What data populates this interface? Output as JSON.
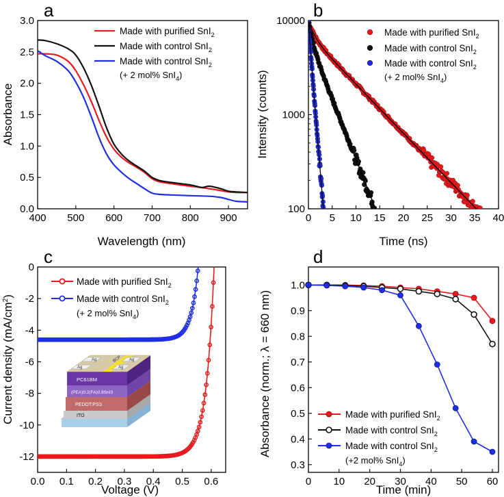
{
  "colors": {
    "red": "#e8191c",
    "black": "#111111",
    "blue": "#1f2ee6"
  },
  "panels": {
    "a": {
      "letter": "a"
    },
    "b": {
      "letter": "b"
    },
    "c": {
      "letter": "c"
    },
    "d": {
      "letter": "d"
    }
  },
  "inset": {
    "layers": [
      "Ag",
      "BCP",
      "PC61BM",
      "(PEA)0.2(FA)0.8SnI3",
      "PEDOT:PSS",
      "ITO"
    ]
  },
  "chart_data": [
    {
      "id": "a",
      "type": "line",
      "xlabel": "Wavelength (nm)",
      "ylabel": "Absorbance",
      "xlim": [
        400,
        950
      ],
      "ylim": [
        0,
        3.0
      ],
      "xticks": [
        400,
        500,
        600,
        700,
        800,
        900
      ],
      "yticks": [
        "0.0",
        "0.5",
        "1.0",
        "1.5",
        "2.0",
        "2.5",
        "3.0"
      ],
      "series": [
        {
          "name": "Made with purified SnI2",
          "legend_main": "Made with purified SnI",
          "legend_sub": "2",
          "color": "red",
          "x": [
            400,
            420,
            450,
            480,
            500,
            520,
            540,
            560,
            580,
            600,
            620,
            640,
            660,
            680,
            700,
            720,
            750,
            800,
            850,
            880,
            900,
            920,
            950
          ],
          "y": [
            2.47,
            2.47,
            2.45,
            2.35,
            2.2,
            1.98,
            1.72,
            1.42,
            1.15,
            0.95,
            0.82,
            0.73,
            0.66,
            0.58,
            0.48,
            0.43,
            0.4,
            0.36,
            0.32,
            0.29,
            0.27,
            0.26,
            0.26
          ]
        },
        {
          "name": "Made with control SnI2",
          "legend_main": "Made with control SnI",
          "legend_sub": "2",
          "color": "black",
          "x": [
            400,
            420,
            450,
            480,
            500,
            520,
            540,
            560,
            580,
            600,
            620,
            640,
            660,
            680,
            700,
            720,
            750,
            800,
            830,
            850,
            880,
            900,
            920,
            950
          ],
          "y": [
            2.69,
            2.68,
            2.63,
            2.55,
            2.45,
            2.25,
            1.98,
            1.65,
            1.3,
            1.03,
            0.87,
            0.76,
            0.68,
            0.6,
            0.5,
            0.45,
            0.42,
            0.38,
            0.34,
            0.36,
            0.32,
            0.28,
            0.27,
            0.26
          ]
        },
        {
          "name": "Made with control SnI2 (+ 2 mol% SnI4)",
          "legend_main": "Made with control SnI",
          "legend_sub": "2",
          "legend_line2": "(+ 2 mol% SnI",
          "legend_line2_sub": "4",
          "legend_line2_end": ")",
          "color": "blue",
          "x": [
            400,
            420,
            450,
            480,
            500,
            520,
            540,
            560,
            580,
            600,
            620,
            640,
            660,
            680,
            700,
            720,
            750,
            800,
            850,
            880,
            900,
            920,
            950
          ],
          "y": [
            2.52,
            2.44,
            2.35,
            2.2,
            2.02,
            1.78,
            1.48,
            1.15,
            0.88,
            0.7,
            0.58,
            0.48,
            0.4,
            0.32,
            0.25,
            0.23,
            0.22,
            0.21,
            0.2,
            0.18,
            0.15,
            0.12,
            0.11
          ]
        }
      ]
    },
    {
      "id": "b",
      "type": "scatter",
      "xlabel": "Time (ns)",
      "ylabel": "Intensity (counts)",
      "xlim": [
        0,
        40
      ],
      "ylim": [
        100,
        10000
      ],
      "yscale": "log",
      "xticks": [
        0,
        5,
        10,
        15,
        20,
        25,
        30,
        35,
        40
      ],
      "yticks": [
        100,
        1000,
        10000
      ],
      "series": [
        {
          "name": "Made with purified SnI2",
          "legend_main": "Made with purified SnI",
          "legend_sub": "2",
          "color": "red",
          "start": 9800,
          "tau1": 1.2,
          "frac1": 0.28,
          "tau2": 8.3,
          "tmax": 40
        },
        {
          "name": "Made with control SnI2",
          "legend_main": "Made with control SnI",
          "legend_sub": "2",
          "color": "black",
          "start": 9800,
          "tau1": 0.8,
          "frac1": 0.35,
          "tau2": 3.4,
          "tmax": 16.5
        },
        {
          "name": "Made with control SnI2 (+ 2 mol% SnI4)",
          "legend_main": "Made with control SnI",
          "legend_sub": "2",
          "legend_line2": "(+ 2 mol% SnI",
          "legend_line2_sub": "4",
          "legend_line2_end": ")",
          "color": "blue",
          "start": 9800,
          "tau1": 0.4,
          "frac1": 0.2,
          "tau2": 0.72,
          "tmax": 3.3
        }
      ]
    },
    {
      "id": "c",
      "type": "line",
      "xlabel": "Voltage (V)",
      "ylabel": "Current density (mA/cm²)",
      "ylabel_main": "Current density (mA/cm",
      "ylabel_sup": "2",
      "ylabel_end": ")",
      "xlim": [
        0,
        0.65
      ],
      "ylim": [
        -13,
        0
      ],
      "xticks": [
        "0.0",
        "0.1",
        "0.2",
        "0.3",
        "0.4",
        "0.5",
        "0.6"
      ],
      "yticks": [
        "-12",
        "-10",
        "-8",
        "-6",
        "-4",
        "-2",
        "0"
      ],
      "series": [
        {
          "name": "Made with purified SnI2",
          "legend_main": "Made with purified SnI",
          "legend_sub": "2",
          "color": "red",
          "jsc": -12.0,
          "voc": 0.61
        },
        {
          "name": "Made with control SnI2 (+ 2 mol% SnI4)",
          "legend_main": "Made with control SnI",
          "legend_sub": "2",
          "legend_line2": "(+ 2 mol% SnI",
          "legend_line2_sub": "4",
          "legend_line2_end": ")",
          "color": "blue",
          "jsc": -4.6,
          "voc": 0.555
        }
      ]
    },
    {
      "id": "d",
      "type": "line",
      "xlabel": "Time (min)",
      "ylabel": "Absorbance (norm.; λ = 660 nm)",
      "xlim": [
        0,
        62
      ],
      "ylim": [
        0.27,
        1.07
      ],
      "xticks": [
        0,
        10,
        20,
        30,
        40,
        50,
        60
      ],
      "yticks": [
        "0.3",
        "0.4",
        "0.5",
        "0.6",
        "0.7",
        "0.8",
        "0.9",
        "1.0"
      ],
      "series": [
        {
          "name": "Made with purified SnI2",
          "legend_main": "Made with purified SnI",
          "legend_sub": "2",
          "color": "red",
          "x": [
            0,
            6,
            12,
            18,
            24,
            30,
            36,
            42,
            48,
            54,
            60
          ],
          "y": [
            1.0,
            1.0,
            1.0,
            0.998,
            0.995,
            0.99,
            0.985,
            0.975,
            0.965,
            0.95,
            0.86
          ]
        },
        {
          "name": "Made with control SnI2",
          "legend_main": "Made with control SnI",
          "legend_sub": "2",
          "color": "black",
          "x": [
            0,
            6,
            12,
            18,
            24,
            30,
            36,
            42,
            48,
            54,
            60
          ],
          "y": [
            1.0,
            1.0,
            0.998,
            0.995,
            0.99,
            0.985,
            0.975,
            0.965,
            0.945,
            0.885,
            0.77
          ]
        },
        {
          "name": "Made with control SnI2 (+2 mol% SnI4)",
          "legend_main": "Made with control SnI",
          "legend_sub": "2",
          "legend_line2": "(+2 mol% SnI",
          "legend_line2_sub": "4",
          "legend_line2_end": ")",
          "color": "blue",
          "x": [
            0,
            6,
            12,
            18,
            24,
            30,
            36,
            42,
            48,
            54,
            60
          ],
          "y": [
            1.0,
            0.998,
            0.995,
            0.99,
            0.98,
            0.96,
            0.84,
            0.69,
            0.52,
            0.39,
            0.35
          ]
        }
      ]
    }
  ]
}
